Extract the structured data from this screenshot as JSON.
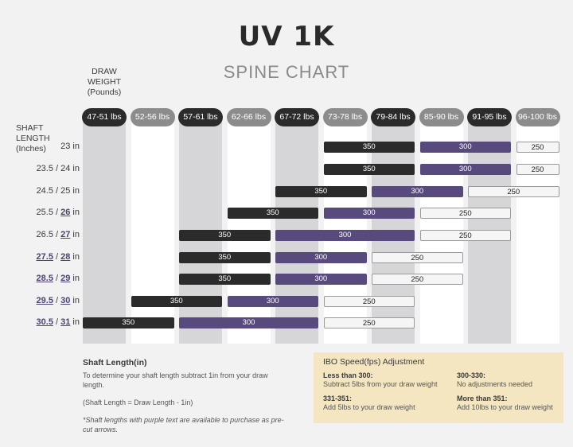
{
  "header": {
    "logo": "UV 1K",
    "title": "SPINE CHART"
  },
  "axis": {
    "draw_weight_label": [
      "DRAW",
      "WEIGHT",
      "(Pounds)"
    ],
    "shaft_length_label": [
      "SHAFT",
      "LENGTH",
      "(Inches)"
    ]
  },
  "weights": [
    "47-51 lbs",
    "52-56 lbs",
    "57-61 lbs",
    "62-66 lbs",
    "67-72 lbs",
    "73-78 lbs",
    "79-84 lbs",
    "85-90 lbs",
    "91-95 lbs",
    "96-100 lbs"
  ],
  "rows": [
    {
      "plain": "23 in",
      "purple": [],
      "bars": [
        {
          "spine": "350",
          "from": 5,
          "to": 6
        },
        {
          "spine": "300",
          "from": 7,
          "to": 8
        },
        {
          "spine": "250",
          "from": 9,
          "to": 9
        }
      ]
    },
    {
      "plain": "23.5 / 24 in",
      "purple": [],
      "bars": [
        {
          "spine": "350",
          "from": 5,
          "to": 6
        },
        {
          "spine": "300",
          "from": 7,
          "to": 8
        },
        {
          "spine": "250",
          "from": 9,
          "to": 9
        }
      ]
    },
    {
      "plain": "24.5 / 25 in",
      "purple": [],
      "bars": [
        {
          "spine": "350",
          "from": 4,
          "to": 5
        },
        {
          "spine": "300",
          "from": 6,
          "to": 7
        },
        {
          "spine": "250",
          "from": 8,
          "to": 9
        }
      ]
    },
    {
      "plain": "25.5 / ",
      "purple": [
        "26"
      ],
      "suffix": " in",
      "bars": [
        {
          "spine": "350",
          "from": 3,
          "to": 4
        },
        {
          "spine": "300",
          "from": 5,
          "to": 6
        },
        {
          "spine": "250",
          "from": 7,
          "to": 8
        }
      ]
    },
    {
      "plain": "26.5 / ",
      "purple": [
        "27"
      ],
      "suffix": " in",
      "bars": [
        {
          "spine": "350",
          "from": 2,
          "to": 3
        },
        {
          "spine": "300",
          "from": 4,
          "to": 6
        },
        {
          "spine": "250",
          "from": 7,
          "to": 8
        }
      ]
    },
    {
      "plain": "",
      "purple": [
        "27.5",
        "28"
      ],
      "suffix": " in",
      "bars": [
        {
          "spine": "350",
          "from": 2,
          "to": 3
        },
        {
          "spine": "300",
          "from": 4,
          "to": 5
        },
        {
          "spine": "250",
          "from": 6,
          "to": 7
        }
      ]
    },
    {
      "plain": "",
      "purple": [
        "28.5",
        "29"
      ],
      "suffix": " in",
      "bars": [
        {
          "spine": "350",
          "from": 2,
          "to": 3
        },
        {
          "spine": "300",
          "from": 4,
          "to": 5
        },
        {
          "spine": "250",
          "from": 6,
          "to": 7
        }
      ]
    },
    {
      "plain": "",
      "purple": [
        "29.5",
        "30"
      ],
      "suffix": " in",
      "bars": [
        {
          "spine": "350",
          "from": 1,
          "to": 2
        },
        {
          "spine": "300",
          "from": 3,
          "to": 4
        },
        {
          "spine": "250",
          "from": 5,
          "to": 6
        }
      ]
    },
    {
      "plain": "",
      "purple": [
        "30.5",
        "31"
      ],
      "suffix": " in",
      "bars": [
        {
          "spine": "350",
          "from": 0,
          "to": 1
        },
        {
          "spine": "300",
          "from": 2,
          "to": 4
        },
        {
          "spine": "250",
          "from": 5,
          "to": 6
        }
      ]
    }
  ],
  "shaft_info": {
    "heading": "Shaft Length(in)",
    "body": "To determine your shaft length subtract 1in from your draw length.",
    "formula": "(Shaft Length = Draw Length - 1in)",
    "note": "*Shaft lengths with purple text are available to purchase as pre-cut arrows."
  },
  "ibo": {
    "heading": "IBO Speed(fps) Adjustment",
    "items": [
      {
        "label": "Less than 300:",
        "text": "Subtract 5lbs from your draw weight"
      },
      {
        "label": "300-330:",
        "text": "No adjustments needed"
      },
      {
        "label": "331-351:",
        "text": "Add 5lbs to your draw weight"
      },
      {
        "label": "More than 351:",
        "text": "Add 10lbs to your draw weight"
      }
    ]
  }
}
